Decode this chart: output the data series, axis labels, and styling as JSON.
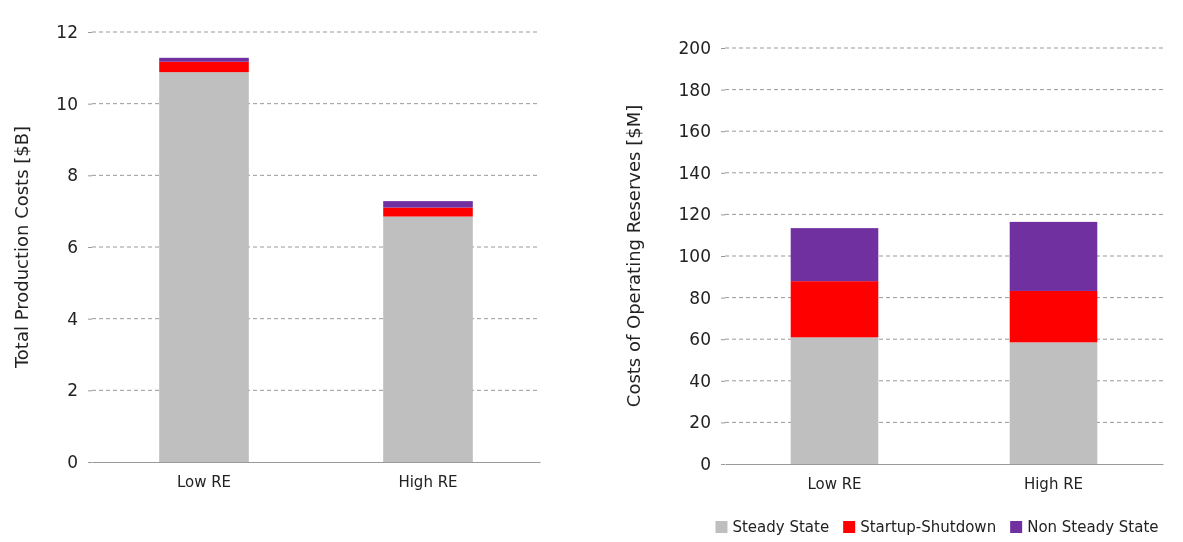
{
  "chart_data": [
    {
      "type": "bar",
      "stacked": true,
      "ylabel": "Total Production Costs [$B]",
      "categories": [
        "Low RE",
        "High RE"
      ],
      "ylim": [
        0,
        12
      ],
      "yticks": [
        0,
        2,
        4,
        6,
        8,
        10,
        12
      ],
      "grid": "y",
      "legend": false,
      "series": [
        {
          "color": "#bfbfbf",
          "values": [
            10.88,
            6.85
          ]
        },
        {
          "color": "#ff0000",
          "values": [
            0.29,
            0.25
          ]
        },
        {
          "color": "#7030a0",
          "values": [
            0.11,
            0.18
          ]
        }
      ]
    },
    {
      "type": "bar",
      "stacked": true,
      "ylabel": "Costs of Operating Reserves [$M]",
      "categories": [
        "Low RE",
        "High RE"
      ],
      "ylim": [
        0,
        200
      ],
      "yticks": [
        0,
        20,
        40,
        60,
        80,
        100,
        120,
        140,
        160,
        180,
        200
      ],
      "grid": "y",
      "legend": "bottom",
      "series": [
        {
          "name": "Steady State",
          "color": "#bfbfbf",
          "values": [
            60.9,
            58.5
          ]
        },
        {
          "name": "Startup-Shutdown",
          "color": "#ff0000",
          "values": [
            27.0,
            24.7
          ]
        },
        {
          "name": "Non Steady State",
          "color": "#7030a0",
          "values": [
            25.5,
            33.2
          ]
        }
      ]
    }
  ]
}
